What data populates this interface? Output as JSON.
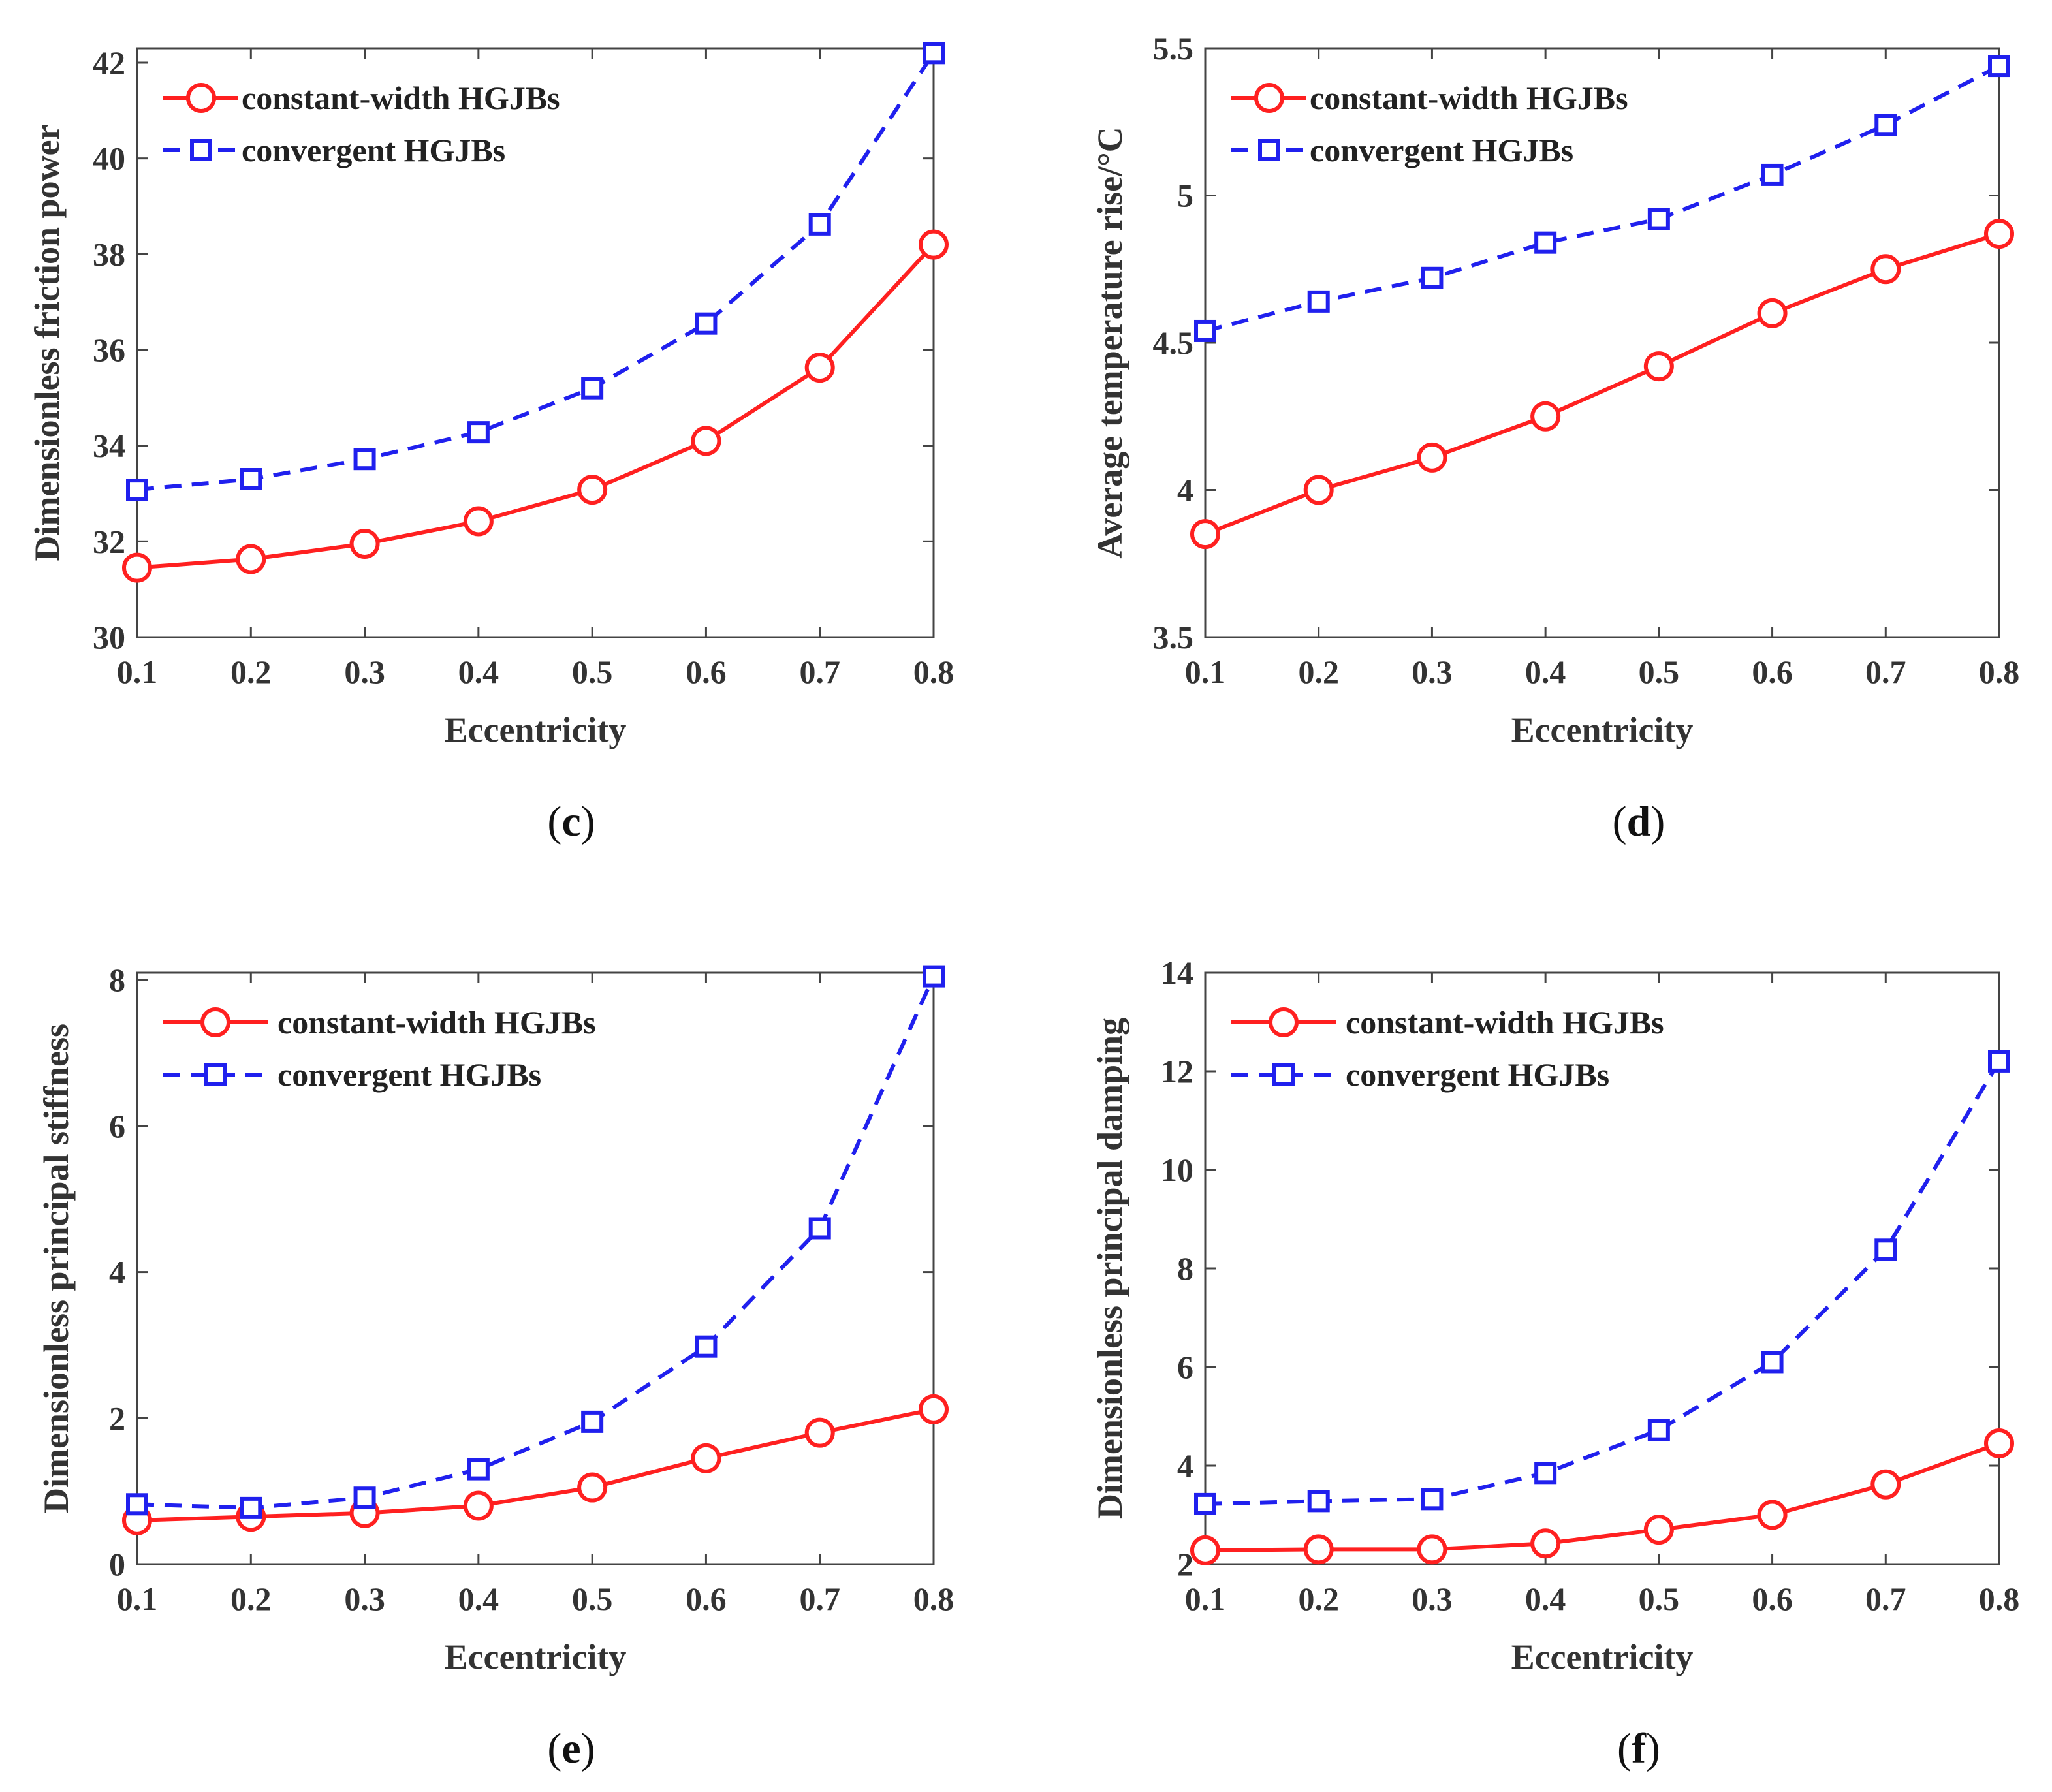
{
  "chart_data": [
    {
      "panel": "c",
      "type": "line",
      "xlabel": "Eccentricity",
      "ylabel": "Dimensionless friction power",
      "x": [
        0.1,
        0.2,
        0.3,
        0.4,
        0.5,
        0.6,
        0.7,
        0.8
      ],
      "xticks": [
        "0.1",
        "0.2",
        "0.3",
        "0.4",
        "0.5",
        "0.6",
        "0.7",
        "0.8"
      ],
      "xlim": [
        0.1,
        0.8
      ],
      "ylim": [
        30,
        42.3
      ],
      "yticks": [
        30,
        32,
        34,
        36,
        38,
        40,
        42
      ],
      "ytick_labels": [
        "30",
        "32",
        "34",
        "36",
        "38",
        "40",
        "42"
      ],
      "legend_layout": "tight",
      "series": [
        {
          "name": "constant-width HGJBs",
          "color": "#ff2020",
          "marker": "circle",
          "dash": "solid",
          "values": [
            31.45,
            31.63,
            31.95,
            32.42,
            33.08,
            34.1,
            35.63,
            38.2
          ]
        },
        {
          "name": "convergent HGJBs",
          "color": "#2020ee",
          "marker": "square",
          "dash": "dashed",
          "values": [
            33.08,
            33.3,
            33.72,
            34.28,
            35.2,
            36.55,
            38.62,
            42.2
          ]
        }
      ]
    },
    {
      "panel": "d",
      "type": "line",
      "xlabel": "Eccentricity",
      "ylabel": "Average temperature rise/°C",
      "x": [
        0.1,
        0.2,
        0.3,
        0.4,
        0.5,
        0.6,
        0.7,
        0.8
      ],
      "xticks": [
        "0.1",
        "0.2",
        "0.3",
        "0.4",
        "0.5",
        "0.6",
        "0.7",
        "0.8"
      ],
      "xlim": [
        0.1,
        0.8
      ],
      "ylim": [
        3.5,
        5.5
      ],
      "yticks": [
        3.5,
        4,
        4.5,
        5,
        5.5
      ],
      "ytick_labels": [
        "3.5",
        "4",
        "4.5",
        "5",
        "5.5"
      ],
      "legend_layout": "tight",
      "series": [
        {
          "name": "constant-width HGJBs",
          "color": "#ff2020",
          "marker": "circle",
          "dash": "solid",
          "values": [
            3.85,
            4.0,
            4.11,
            4.25,
            4.42,
            4.6,
            4.75,
            4.87
          ]
        },
        {
          "name": "convergent HGJBs",
          "color": "#2020ee",
          "marker": "square",
          "dash": "dashed",
          "values": [
            4.54,
            4.64,
            4.72,
            4.84,
            4.92,
            5.07,
            5.24,
            5.44
          ]
        }
      ]
    },
    {
      "panel": "e",
      "type": "line",
      "xlabel": "Eccentricity",
      "ylabel": "Dimensionless principal stiffness",
      "x": [
        0.1,
        0.2,
        0.3,
        0.4,
        0.5,
        0.6,
        0.7,
        0.8
      ],
      "xticks": [
        "0.1",
        "0.2",
        "0.3",
        "0.4",
        "0.5",
        "0.6",
        "0.7",
        "0.8"
      ],
      "xlim": [
        0.1,
        0.8
      ],
      "ylim": [
        0,
        8.1
      ],
      "yticks": [
        0,
        2,
        4,
        6,
        8
      ],
      "ytick_labels": [
        "0",
        "2",
        "4",
        "6",
        "8"
      ],
      "legend_layout": "wide",
      "series": [
        {
          "name": "constant-width HGJBs",
          "color": "#ff2020",
          "marker": "circle",
          "dash": "solid",
          "values": [
            0.6,
            0.65,
            0.7,
            0.8,
            1.05,
            1.45,
            1.8,
            2.12
          ]
        },
        {
          "name": "convergent HGJBs",
          "color": "#2020ee",
          "marker": "square",
          "dash": "dashed",
          "values": [
            0.82,
            0.77,
            0.91,
            1.3,
            1.95,
            2.98,
            4.6,
            8.05
          ]
        }
      ]
    },
    {
      "panel": "f",
      "type": "line",
      "xlabel": "Eccentricity",
      "ylabel": "Dimensionless principal damping",
      "x": [
        0.1,
        0.2,
        0.3,
        0.4,
        0.5,
        0.6,
        0.7,
        0.8
      ],
      "xticks": [
        "0.1",
        "0.2",
        "0.3",
        "0.4",
        "0.5",
        "0.6",
        "0.7",
        "0.8"
      ],
      "xlim": [
        0.1,
        0.8
      ],
      "ylim": [
        2,
        14
      ],
      "yticks": [
        2,
        4,
        6,
        8,
        10,
        12,
        14
      ],
      "ytick_labels": [
        "2",
        "4",
        "6",
        "8",
        "10",
        "12",
        "14"
      ],
      "legend_layout": "wide",
      "series": [
        {
          "name": "constant-width HGJBs",
          "color": "#ff2020",
          "marker": "circle",
          "dash": "solid",
          "values": [
            2.28,
            2.3,
            2.3,
            2.42,
            2.7,
            3.0,
            3.62,
            4.45
          ]
        },
        {
          "name": "convergent HGJBs",
          "color": "#2020ee",
          "marker": "square",
          "dash": "dashed",
          "values": [
            3.22,
            3.28,
            3.32,
            3.85,
            4.72,
            6.1,
            8.38,
            12.2
          ]
        }
      ]
    }
  ],
  "panel_labels": [
    {
      "open": "(",
      "letter": "c",
      "close": ")"
    },
    {
      "open": "(",
      "letter": "d",
      "close": ")"
    },
    {
      "open": "(",
      "letter": "e",
      "close": ")"
    },
    {
      "open": "(",
      "letter": "f",
      "close": ")"
    }
  ]
}
